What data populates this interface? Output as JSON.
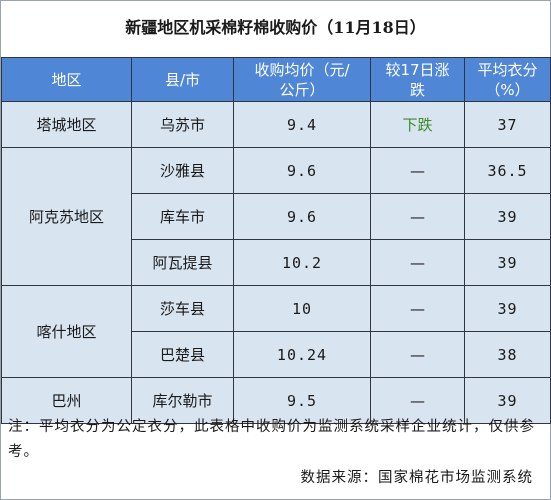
{
  "title": "新疆地区机采棉籽棉收购价（11月18日）",
  "headers": {
    "region": "地区",
    "county": "县/市",
    "price_line1": "收购均价（元/",
    "price_line2": "公斤）",
    "change_line1": "较17日涨",
    "change_line2": "跌",
    "lint_line1": "平均衣分",
    "lint_line2": "（%）"
  },
  "regions": [
    {
      "name": "塔城地区",
      "rows": [
        {
          "county": "乌苏市",
          "price": "9.4",
          "change": "下跌",
          "lint": "37"
        }
      ]
    },
    {
      "name": "阿克苏地区",
      "rows": [
        {
          "county": "沙雅县",
          "price": "9.6",
          "change": "—",
          "lint": "36.5"
        },
        {
          "county": "库车市",
          "price": "9.6",
          "change": "—",
          "lint": "39"
        },
        {
          "county": "阿瓦提县",
          "price": "10.2",
          "change": "—",
          "lint": "39"
        }
      ]
    },
    {
      "name": "喀什地区",
      "rows": [
        {
          "county": "莎车县",
          "price": "10",
          "change": "—",
          "lint": "39"
        },
        {
          "county": "巴楚县",
          "price": "10.24",
          "change": "—",
          "lint": "38"
        }
      ]
    },
    {
      "name": "巴州",
      "rows": [
        {
          "county": "库尔勒市",
          "price": "9.5",
          "change": "—",
          "lint": "39"
        }
      ]
    }
  ],
  "note": "注：平均衣分为公定衣分，此表格中收购价为监测系统采样企业统计，仅供参考。",
  "source": "数据来源：国家棉花市场监测系统",
  "colors": {
    "header_bg": "#4f86d6",
    "cell_bg": "#d9e4f1",
    "fall_text": "#3d8a2a"
  }
}
